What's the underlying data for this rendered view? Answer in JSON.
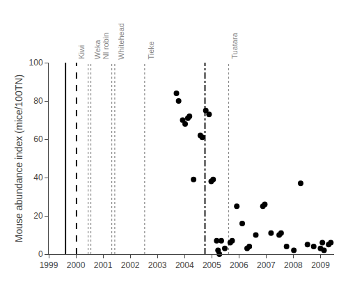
{
  "chart_data": {
    "type": "scatter",
    "ylabel": "Mouse abundance index (mice/100TN)",
    "x": [
      2003.7,
      2003.78,
      2003.93,
      2004.02,
      2004.12,
      2004.18,
      2004.33,
      2004.58,
      2004.65,
      2004.78,
      2004.9,
      2004.98,
      2005.05,
      2005.18,
      2005.23,
      2005.28,
      2005.35,
      2005.48,
      2005.68,
      2005.75,
      2005.92,
      2006.12,
      2006.3,
      2006.38,
      2006.62,
      2006.88,
      2006.95,
      2007.18,
      2007.48,
      2007.55,
      2007.75,
      2008.02,
      2008.27,
      2008.52,
      2008.75,
      2009.0,
      2009.07,
      2009.13,
      2009.3,
      2009.38
    ],
    "values": [
      84,
      80,
      70,
      68,
      71,
      72,
      39,
      62,
      61,
      75,
      73,
      38,
      39,
      7,
      2,
      0,
      7,
      3,
      6,
      7,
      25,
      16,
      3,
      4,
      10,
      25,
      26,
      11,
      10,
      11,
      4,
      2,
      37,
      5,
      4,
      3,
      6,
      2,
      5,
      6
    ],
    "color": "black",
    "xlim": [
      1999,
      2009.5
    ],
    "ylim": [
      0,
      100
    ],
    "xticks": [
      1999,
      2000,
      2001,
      2002,
      2003,
      2004,
      2005,
      2006,
      2007,
      2008,
      2009
    ],
    "yticks": [
      0,
      20,
      40,
      60,
      80,
      100
    ],
    "grid": false,
    "vlines": [
      {
        "x": 1999.62,
        "line_style": "solid",
        "color": "black"
      },
      {
        "x": 2000.02,
        "line_style": "dashed",
        "color": "black"
      },
      {
        "x": 2000.45,
        "line_style": "dotted",
        "color": "#888888",
        "label": "Kiwi"
      },
      {
        "x": 2000.55,
        "line_style": "dotted",
        "color": "#888888",
        "label": "Weka"
      },
      {
        "x": 2001.32,
        "line_style": "dotted",
        "color": "#888888",
        "label": "NI robin"
      },
      {
        "x": 2001.43,
        "line_style": "dotted",
        "color": "#888888",
        "label": "Whitehead"
      },
      {
        "x": 2002.53,
        "line_style": "dotted",
        "color": "#888888",
        "label": "Tieke"
      },
      {
        "x": 2005.62,
        "line_style": "dotted",
        "color": "#888888",
        "label": "Tuatara"
      },
      {
        "x": 2004.75,
        "line_style": "dashdot",
        "color": "black"
      }
    ]
  }
}
